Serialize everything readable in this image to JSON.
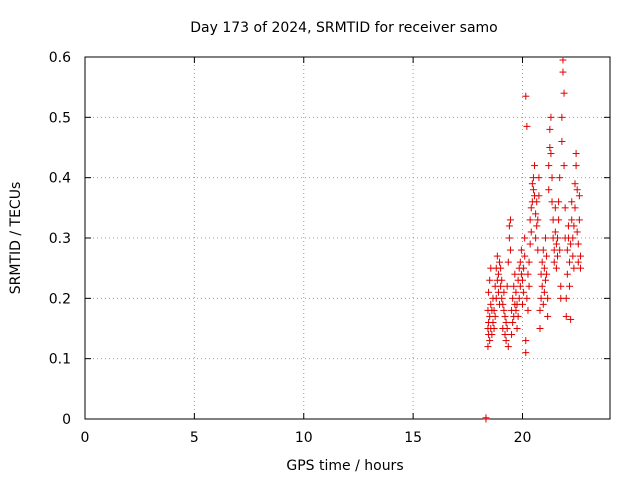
{
  "chart_data": {
    "type": "scatter",
    "title": "Day 173 of 2024, SRMTID for receiver samo",
    "xlabel": "GPS time / hours",
    "ylabel": "SRMTID / TECUs",
    "xlim": [
      0,
      24
    ],
    "ylim": [
      0,
      0.6
    ],
    "xticks": [
      0,
      5,
      10,
      15,
      20
    ],
    "yticks": [
      0,
      0.1,
      0.2,
      0.3,
      0.4,
      0.5,
      0.6
    ],
    "xtick_labels": [
      "0",
      "5",
      "10",
      "15",
      "20"
    ],
    "ytick_labels": [
      "0",
      "0.1",
      "0.2",
      "0.3",
      "0.4",
      "0.5",
      "0.6"
    ],
    "grid": true,
    "marker": "+",
    "color": "#e00000",
    "series": [
      {
        "name": "SRMTID",
        "points": [
          [
            18.33,
            0.0
          ],
          [
            18.33,
            0.002
          ],
          [
            18.42,
            0.12
          ],
          [
            18.42,
            0.15
          ],
          [
            18.42,
            0.18
          ],
          [
            18.45,
            0.14
          ],
          [
            18.45,
            0.16
          ],
          [
            18.45,
            0.21
          ],
          [
            18.5,
            0.13
          ],
          [
            18.5,
            0.17
          ],
          [
            18.5,
            0.23
          ],
          [
            18.55,
            0.15
          ],
          [
            18.55,
            0.19
          ],
          [
            18.55,
            0.25
          ],
          [
            18.6,
            0.14
          ],
          [
            18.6,
            0.18
          ],
          [
            18.65,
            0.16
          ],
          [
            18.65,
            0.2
          ],
          [
            18.7,
            0.15
          ],
          [
            18.7,
            0.18
          ],
          [
            18.75,
            0.17
          ],
          [
            18.75,
            0.22
          ],
          [
            18.8,
            0.2
          ],
          [
            18.8,
            0.25
          ],
          [
            18.85,
            0.23
          ],
          [
            18.85,
            0.27
          ],
          [
            18.9,
            0.21
          ],
          [
            18.9,
            0.24
          ],
          [
            18.95,
            0.19
          ],
          [
            18.95,
            0.26
          ],
          [
            19.0,
            0.22
          ],
          [
            19.0,
            0.25
          ],
          [
            19.05,
            0.2
          ],
          [
            19.05,
            0.23
          ],
          [
            19.1,
            0.15
          ],
          [
            19.1,
            0.19
          ],
          [
            19.15,
            0.18
          ],
          [
            19.15,
            0.21
          ],
          [
            19.2,
            0.14
          ],
          [
            19.2,
            0.17
          ],
          [
            19.25,
            0.13
          ],
          [
            19.25,
            0.16
          ],
          [
            19.3,
            0.15
          ],
          [
            19.3,
            0.22
          ],
          [
            19.35,
            0.12
          ],
          [
            19.35,
            0.26
          ],
          [
            19.4,
            0.3
          ],
          [
            19.4,
            0.32
          ],
          [
            19.45,
            0.33
          ],
          [
            19.45,
            0.28
          ],
          [
            19.5,
            0.14
          ],
          [
            19.5,
            0.18
          ],
          [
            19.55,
            0.16
          ],
          [
            19.55,
            0.2
          ],
          [
            19.6,
            0.17
          ],
          [
            19.6,
            0.22
          ],
          [
            19.65,
            0.19
          ],
          [
            19.65,
            0.24
          ],
          [
            19.7,
            0.18
          ],
          [
            19.7,
            0.21
          ],
          [
            19.75,
            0.15
          ],
          [
            19.75,
            0.19
          ],
          [
            19.8,
            0.17
          ],
          [
            19.8,
            0.23
          ],
          [
            19.85,
            0.2
          ],
          [
            19.85,
            0.25
          ],
          [
            19.9,
            0.22
          ],
          [
            19.9,
            0.26
          ],
          [
            19.95,
            0.24
          ],
          [
            19.95,
            0.28
          ],
          [
            20.0,
            0.19
          ],
          [
            20.0,
            0.23
          ],
          [
            20.05,
            0.25
          ],
          [
            20.05,
            0.21
          ],
          [
            20.1,
            0.27
          ],
          [
            20.1,
            0.3
          ],
          [
            20.15,
            0.11
          ],
          [
            20.15,
            0.13
          ],
          [
            20.15,
            0.535
          ],
          [
            20.2,
            0.485
          ],
          [
            20.2,
            0.2
          ],
          [
            20.25,
            0.18
          ],
          [
            20.25,
            0.24
          ],
          [
            20.3,
            0.26
          ],
          [
            20.3,
            0.22
          ],
          [
            20.35,
            0.29
          ],
          [
            20.35,
            0.33
          ],
          [
            20.4,
            0.31
          ],
          [
            20.4,
            0.35
          ],
          [
            20.45,
            0.36
          ],
          [
            20.45,
            0.39
          ],
          [
            20.5,
            0.4
          ],
          [
            20.5,
            0.38
          ],
          [
            20.55,
            0.42
          ],
          [
            20.55,
            0.37
          ],
          [
            20.6,
            0.34
          ],
          [
            20.6,
            0.3
          ],
          [
            20.65,
            0.32
          ],
          [
            20.65,
            0.36
          ],
          [
            20.7,
            0.28
          ],
          [
            20.7,
            0.33
          ],
          [
            20.75,
            0.37
          ],
          [
            20.75,
            0.4
          ],
          [
            20.8,
            0.15
          ],
          [
            20.8,
            0.18
          ],
          [
            20.85,
            0.2
          ],
          [
            20.85,
            0.24
          ],
          [
            20.9,
            0.22
          ],
          [
            20.9,
            0.26
          ],
          [
            20.95,
            0.19
          ],
          [
            20.95,
            0.28
          ],
          [
            21.0,
            0.21
          ],
          [
            21.0,
            0.25
          ],
          [
            21.05,
            0.23
          ],
          [
            21.05,
            0.3
          ],
          [
            21.1,
            0.27
          ],
          [
            21.1,
            0.24
          ],
          [
            21.15,
            0.2
          ],
          [
            21.15,
            0.17
          ],
          [
            21.2,
            0.38
          ],
          [
            21.2,
            0.42
          ],
          [
            21.25,
            0.45
          ],
          [
            21.25,
            0.48
          ],
          [
            21.3,
            0.5
          ],
          [
            21.3,
            0.44
          ],
          [
            21.35,
            0.4
          ],
          [
            21.35,
            0.36
          ],
          [
            21.4,
            0.33
          ],
          [
            21.4,
            0.3
          ],
          [
            21.45,
            0.28
          ],
          [
            21.45,
            0.26
          ],
          [
            21.5,
            0.31
          ],
          [
            21.5,
            0.35
          ],
          [
            21.55,
            0.29
          ],
          [
            21.55,
            0.25
          ],
          [
            21.6,
            0.3
          ],
          [
            21.6,
            0.27
          ],
          [
            21.65,
            0.33
          ],
          [
            21.65,
            0.36
          ],
          [
            21.7,
            0.4
          ],
          [
            21.7,
            0.28
          ],
          [
            21.75,
            0.22
          ],
          [
            21.75,
            0.2
          ],
          [
            21.8,
            0.46
          ],
          [
            21.8,
            0.5
          ],
          [
            21.85,
            0.595
          ],
          [
            21.85,
            0.575
          ],
          [
            21.9,
            0.54
          ],
          [
            21.9,
            0.42
          ],
          [
            21.95,
            0.35
          ],
          [
            21.95,
            0.3
          ],
          [
            22.0,
            0.17
          ],
          [
            22.0,
            0.2
          ],
          [
            22.05,
            0.24
          ],
          [
            22.05,
            0.28
          ],
          [
            22.1,
            0.32
          ],
          [
            22.1,
            0.3
          ],
          [
            22.15,
            0.26
          ],
          [
            22.15,
            0.22
          ],
          [
            22.2,
            0.165
          ],
          [
            22.2,
            0.29
          ],
          [
            22.25,
            0.33
          ],
          [
            22.25,
            0.36
          ],
          [
            22.3,
            0.3
          ],
          [
            22.3,
            0.27
          ],
          [
            22.35,
            0.25
          ],
          [
            22.35,
            0.32
          ],
          [
            22.4,
            0.35
          ],
          [
            22.4,
            0.39
          ],
          [
            22.45,
            0.42
          ],
          [
            22.45,
            0.44
          ],
          [
            22.5,
            0.38
          ],
          [
            22.5,
            0.31
          ],
          [
            22.55,
            0.29
          ],
          [
            22.55,
            0.26
          ],
          [
            22.6,
            0.33
          ],
          [
            22.6,
            0.37
          ],
          [
            22.65,
            0.27
          ],
          [
            22.65,
            0.25
          ]
        ]
      }
    ]
  }
}
